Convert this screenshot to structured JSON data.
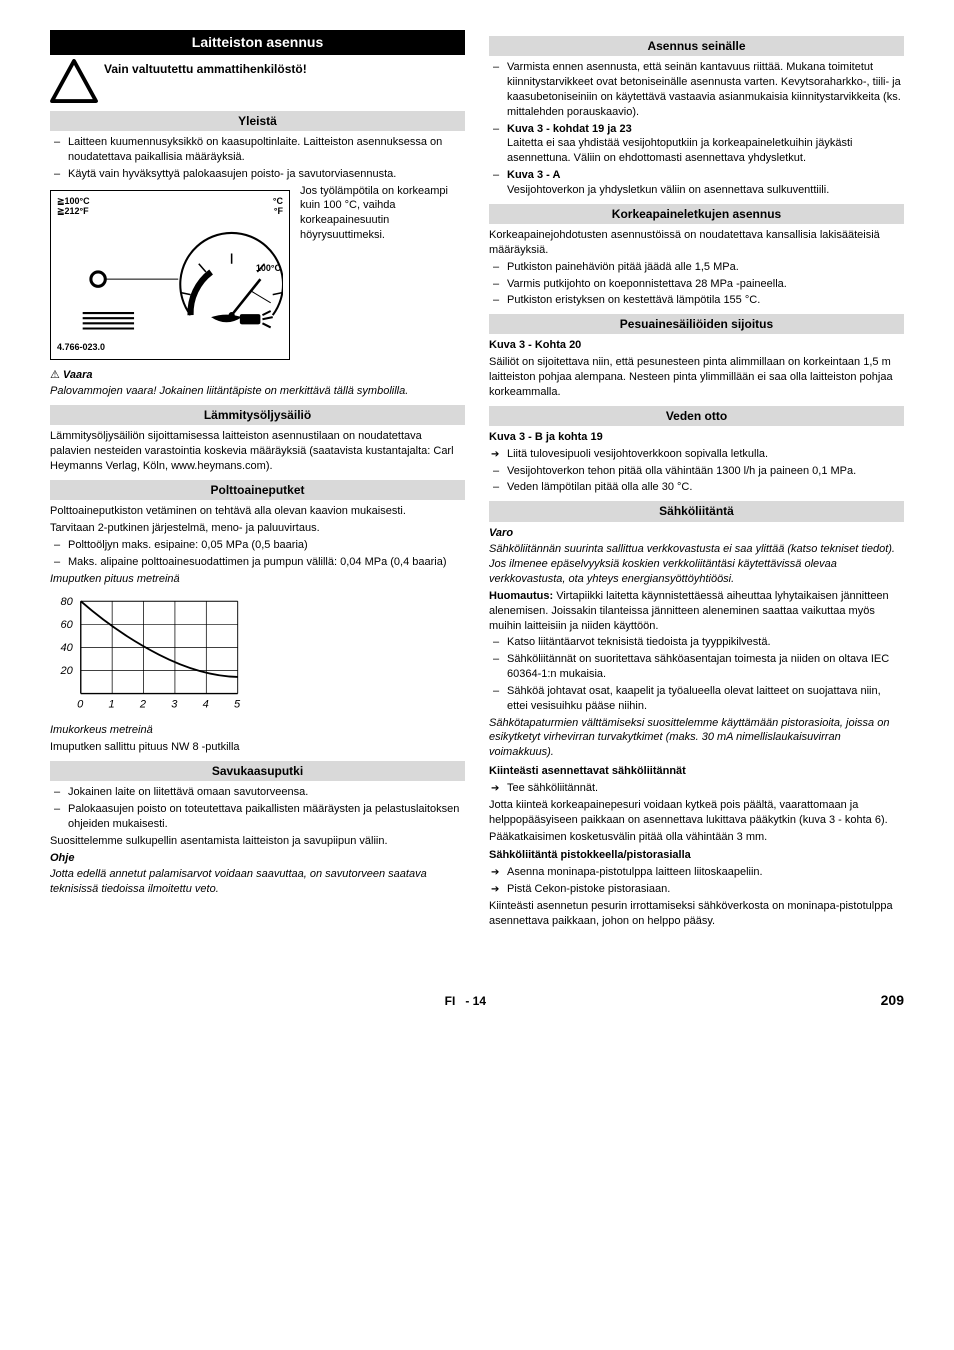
{
  "left": {
    "main_title": "Laitteiston asennus",
    "warn_text": "Vain valtuutettu ammattihenkilöstö!",
    "sec_general": "Yleistä",
    "general_items": [
      "Laitteen kuumennusyksikkö on kaasupoltinlaite. Laitteiston asennuksessa on noudatettava paikallisia määräyksiä.",
      "Käytä vain hyväksyttyä palokaasujen poisto- ja savutorviasennusta."
    ],
    "gauge_labels": {
      "ge100c": "≧100°C",
      "ge212f": "≧212°F",
      "cf": "°C",
      "unit2": "°F",
      "setpoint": "100°C",
      "part": "4.766-023.0"
    },
    "side_note": "Jos työlämpötila on korkeampi kuin 100 °C, vaihda korkeapainesuutin höyrysuuttimeksi.",
    "danger_title": "Vaara",
    "danger_body": "Palovammojen vaara! Jokainen liitäntäpiste on merkittävä tällä symbolilla.",
    "sec_tank": "Lämmitysöljysäiliö",
    "tank_body": "Lämmitysöljysäiliön sijoittamisessa laitteiston asennustilaan on noudatettava palavien nesteiden varastointia koskevia määräyksiä (saatavista kustantajalta: Carl Heymanns Verlag, Köln, www.heymans.com).",
    "sec_fuel": "Polttoaineputket",
    "fuel_p1": "Polttoaineputkiston vetäminen on tehtävä alla olevan kaavion mukaisesti.",
    "fuel_p2": "Tarvitaan 2-putkinen järjestelmä, meno- ja paluuvirtaus.",
    "fuel_items": [
      "Polttoöljyn maks. esipaine: 0,05 MPa (0,5 baaria)",
      "Maks. alipaine polttoainesuodattimen ja pumpun välillä: 0,04 MPa (0,4 baaria)"
    ],
    "fuel_axis_y": "Imuputken pituus metreinä",
    "fuel_axis_x": "Imukorkeus metreinä",
    "fuel_caption": "Imuputken sallittu pituus NW 8 -putkilla",
    "chart": {
      "xvals": [
        0,
        1,
        2,
        3,
        4,
        5
      ],
      "yvals": [
        0,
        20,
        40,
        60,
        80
      ],
      "line": [
        [
          0,
          80
        ],
        [
          1.5,
          60
        ],
        [
          3.5,
          40
        ],
        [
          5,
          20
        ]
      ]
    },
    "sec_flue": "Savukaasuputki",
    "flue_items": [
      "Jokainen laite on liitettävä omaan savutorveensa.",
      "Palokaasujen poisto on toteutettava paikallisten määräysten ja pelastuslaitoksen ohjeiden mukaisesti."
    ],
    "flue_p": "Suosittelemme sulkupellin asentamista laitteiston ja savupiipun väliin.",
    "note_title": "Ohje",
    "note_body": "Jotta edellä annetut palamisarvot voidaan saavuttaa, on savutorveen saatava teknisissä tiedoissa ilmoitettu veto."
  },
  "right": {
    "sec_wall": "Asennus seinälle",
    "wall_items": [
      "Varmista ennen asennusta, että seinän kantavuus riittää. Mukana toimitetut kiinnitystarvikkeet ovat betoniseinälle asennusta varten. Kevytsoraharkko-, tiili- ja kaasubetoniseiniin on käytettävä vastaavia asianmukaisia kiinnitystarvikkeita (ks. mittalehden porauskaavio).",
      "Kuva 3 - kohdat 19 ja 23|Laitetta ei saa yhdistää vesijohtoputkiin ja korkeapaineletkuihin jäykästi asennettuna. Väliin on ehdottomasti asennettava yhdysletkut.",
      "Kuva 3 - A|Vesijohtoverkon ja yhdysletkun väliin on asennettava sulkuventtiili."
    ],
    "sec_hp": "Korkeapaineletkujen asennus",
    "hp_p": "Korkeapainejohdotusten asennustöissä on noudatettava kansallisia lakisääteisiä määräyksiä.",
    "hp_items": [
      "Putkiston painehäviön pitää jäädä alle 1,5 MPa.",
      "Varmis putkijohto on koeponnistettava 28 MPa -paineella.",
      "Putkiston eristyksen on kestettävä lämpötila 155 °C."
    ],
    "sec_det": "Pesuainesäiliöiden sijoitus",
    "det_sub": "Kuva 3 - Kohta 20",
    "det_body": "Säiliöt on sijoitettava niin, että pesunesteen pinta alimmillaan on korkeintaan 1,5 m laitteiston pohjaa alempana. Nesteen pinta ylimmillään ei saa olla laitteiston pohjaa korkeammalla.",
    "sec_water": "Veden otto",
    "water_sub": "Kuva 3 - B ja kohta 19",
    "water_arrow": [
      "Liitä tulovesipuoli vesijohtoverkkoon sopivalla letkulla."
    ],
    "water_items": [
      "Vesijohtoverkon tehon pitää olla vähintään 1300 l/h ja paineen 0,1 MPa.",
      "Veden lämpötilan pitää olla alle 30 °C."
    ],
    "sec_elec": "Sähköliitäntä",
    "varo_title": "Varo",
    "varo_body": "Sähköliitännän suurinta sallittua verkkovastusta ei saa ylittää (katso tekniset tiedot). Jos ilmenee epäselvyyksiä koskien verkkoliitäntäsi käytettävissä olevaa verkkovastusta, ota yhteys energiansyöttöyhtiöösi.",
    "huom_label": "Huomautus:",
    "huom_body": " Virtapiikki laitetta käynnistettäessä aiheuttaa lyhytaikaisen jännitteen alenemisen. Joissakin tilanteissa jännitteen aleneminen saattaa vaikuttaa myös muihin laitteisiin ja niiden käyttöön.",
    "elec_items": [
      "Katso liitäntäarvot teknisistä tiedoista ja tyyppikilvestä.",
      "Sähköliitännät on suoritettava sähköasentajan toimesta ja niiden on oltava IEC 60364-1:n mukaisia.",
      "Sähköä johtavat osat, kaapelit ja työalueella olevat laitteet on suojattava niin, ettei vesisuihku pääse niihin."
    ],
    "elec_ital": "Sähkötapaturmien välttämiseksi suosittelemme käyttämään pistorasioita, joissa on esikytketyt virhevirran turvakytkimet (maks. 30 mA nimellislaukaisuvirran voimakkuus).",
    "fixed_title": "Kiinteästi asennettavat sähköliitännät",
    "fixed_arrow": [
      "Tee sähköliitännät."
    ],
    "fixed_body1": "Jotta kiinteä korkeapainepesuri voidaan kytkeä pois päältä, vaarattomaan ja helppopääsyiseen paikkaan on asennettava lukittava pääkytkin (kuva 3 - kohta 6).",
    "fixed_body2": "Pääkatkaisimen kosketusvälin pitää olla vähintään 3 mm.",
    "plug_title": "Sähköliitäntä pistokkeella/pistorasialla",
    "plug_arrows": [
      "Asenna moninapa-pistotulppa laitteen liitoskaapeliin.",
      "Pistä Cekon-pistoke pistorasiaan."
    ],
    "plug_body": "Kiinteästi asennetun pesurin irrottamiseksi sähköverkosta on moninapa-pistotulppa asennettava paikkaan, johon on helppo pääsy."
  },
  "footer": {
    "lang": "FI",
    "dash": "-",
    "sub": "14",
    "page": "209"
  }
}
